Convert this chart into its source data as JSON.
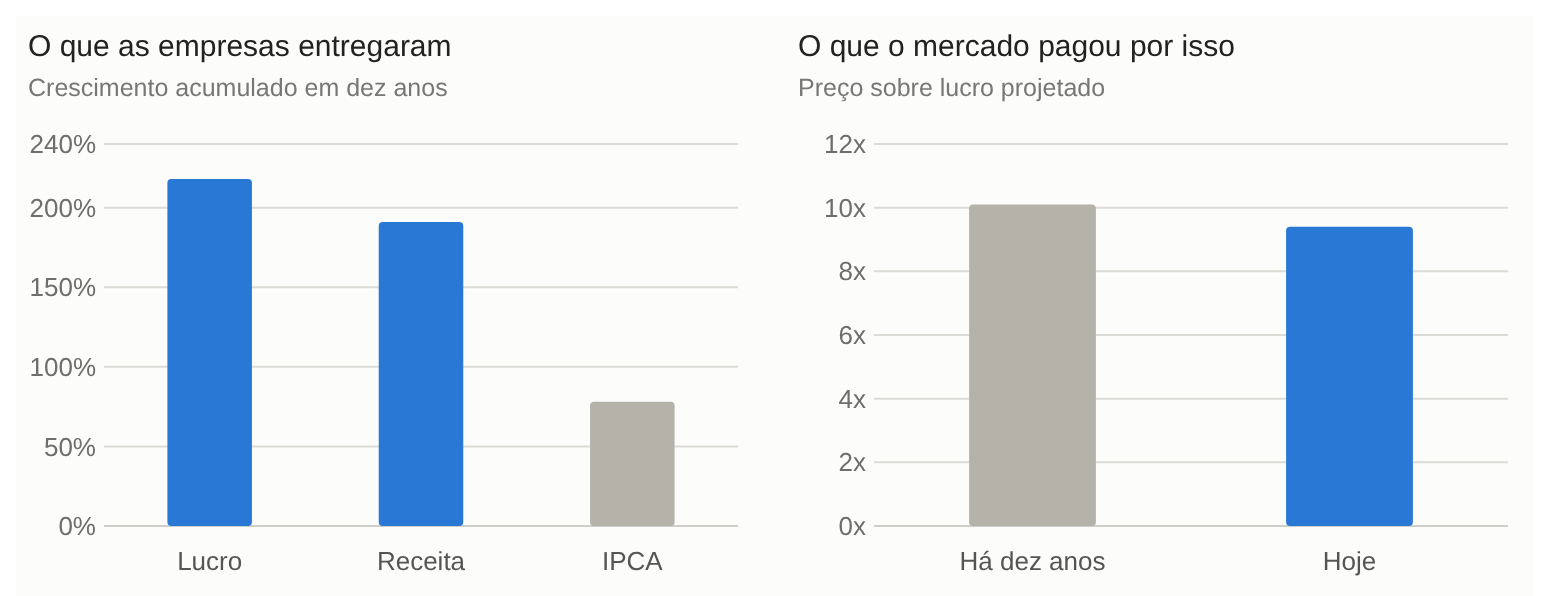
{
  "chart_data": [
    {
      "type": "bar",
      "title": "O que as empresas entregaram",
      "subtitle": "Crescimento acumulado em dez anos",
      "categories": [
        "Lucro",
        "Receita",
        "IPCA"
      ],
      "values": [
        218,
        191,
        78
      ],
      "colors": [
        "#2a78d6",
        "#2a78d6",
        "#b5b2aa"
      ],
      "ylim": [
        0,
        240
      ],
      "yticks": [
        {
          "value": 0,
          "label": "0%"
        },
        {
          "value": 50,
          "label": "50%"
        },
        {
          "value": 100,
          "label": "100%"
        },
        {
          "value": 150,
          "label": "150%"
        },
        {
          "value": 200,
          "label": "200%"
        },
        {
          "value": 240,
          "label": "240%"
        }
      ],
      "grid": "y"
    },
    {
      "type": "bar",
      "title": "O que o mercado pagou por isso",
      "subtitle": "Preço sobre lucro projetado",
      "categories": [
        "Há dez anos",
        "Hoje"
      ],
      "values": [
        10.1,
        9.4
      ],
      "colors": [
        "#b5b2aa",
        "#2a78d6"
      ],
      "ylim": [
        0,
        12
      ],
      "yticks": [
        {
          "value": 0,
          "label": "0x"
        },
        {
          "value": 2,
          "label": "2x"
        },
        {
          "value": 4,
          "label": "4x"
        },
        {
          "value": 6,
          "label": "6x"
        },
        {
          "value": 8,
          "label": "8x"
        },
        {
          "value": 10,
          "label": "10x"
        },
        {
          "value": 12,
          "label": "12x"
        }
      ],
      "grid": "y"
    }
  ]
}
